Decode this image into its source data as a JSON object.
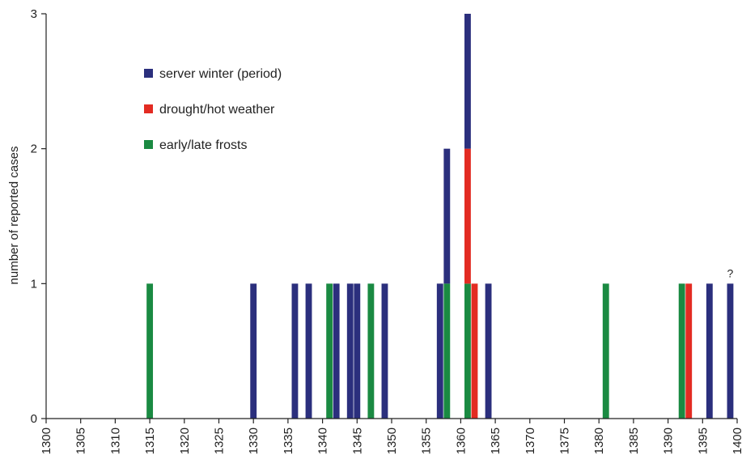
{
  "chart_data": {
    "type": "bar",
    "stacked": true,
    "title": "",
    "xlabel": "",
    "ylabel": "number of reported cases",
    "xlim": [
      1300,
      1400
    ],
    "ylim": [
      0,
      3
    ],
    "x_ticks": [
      1300,
      1305,
      1310,
      1315,
      1320,
      1325,
      1330,
      1335,
      1340,
      1345,
      1350,
      1355,
      1360,
      1365,
      1370,
      1375,
      1380,
      1385,
      1390,
      1395,
      1400
    ],
    "y_ticks": [
      0,
      1,
      2,
      3
    ],
    "grid": false,
    "legend_position": "top-left",
    "series": [
      {
        "name": "server winter (period)",
        "color": "#2b2f7d",
        "points": [
          {
            "year": 1330,
            "value": 1
          },
          {
            "year": 1336,
            "value": 1
          },
          {
            "year": 1338,
            "value": 1
          },
          {
            "year": 1342,
            "value": 1
          },
          {
            "year": 1344,
            "value": 1
          },
          {
            "year": 1345,
            "value": 1
          },
          {
            "year": 1349,
            "value": 1
          },
          {
            "year": 1357,
            "value": 1
          },
          {
            "year": 1358,
            "value": 1
          },
          {
            "year": 1361,
            "value": 1
          },
          {
            "year": 1364,
            "value": 1
          },
          {
            "year": 1396,
            "value": 1
          },
          {
            "year": 1399,
            "value": 1
          }
        ]
      },
      {
        "name": "drought/hot weather",
        "color": "#e32b22",
        "points": [
          {
            "year": 1361,
            "value": 1
          },
          {
            "year": 1362,
            "value": 1
          },
          {
            "year": 1393,
            "value": 1
          }
        ]
      },
      {
        "name": "early/late frosts",
        "color": "#1a8a42",
        "points": [
          {
            "year": 1315,
            "value": 1
          },
          {
            "year": 1341,
            "value": 1
          },
          {
            "year": 1347,
            "value": 1
          },
          {
            "year": 1358,
            "value": 1
          },
          {
            "year": 1361,
            "value": 1
          },
          {
            "year": 1381,
            "value": 1
          },
          {
            "year": 1392,
            "value": 1
          }
        ]
      }
    ],
    "stack_order": [
      "early/late frosts",
      "drought/hot weather",
      "server winter (period)"
    ],
    "annotations": [
      {
        "text": "?",
        "year": 1399,
        "value": 1
      }
    ]
  }
}
